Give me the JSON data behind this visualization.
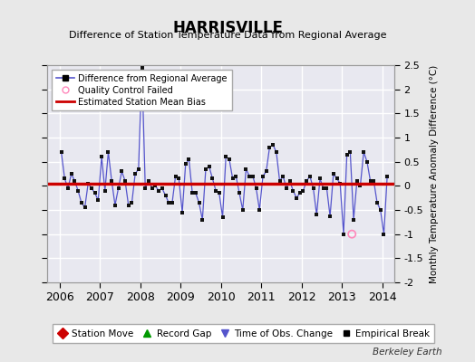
{
  "title": "HARRISVILLE",
  "subtitle": "Difference of Station Temperature Data from Regional Average",
  "ylabel": "Monthly Temperature Anomaly Difference (°C)",
  "credit": "Berkeley Earth",
  "xlim": [
    2005.7,
    2014.3
  ],
  "ylim": [
    -2.0,
    2.5
  ],
  "mean_bias": 0.05,
  "fig_facecolor": "#e8e8e8",
  "ax_facecolor": "#e8e8f0",
  "grid_color": "#ffffff",
  "line_color": "#5555cc",
  "marker_color": "#111111",
  "bias_color": "#cc0000",
  "qc_fail_x": 2013.25,
  "qc_fail_y": -1.0,
  "yticks": [
    -2.0,
    -1.5,
    -1.0,
    -0.5,
    0.0,
    0.5,
    1.0,
    1.5,
    2.0,
    2.5
  ],
  "xticks": [
    2006,
    2007,
    2008,
    2009,
    2010,
    2011,
    2012,
    2013,
    2014
  ],
  "data_x": [
    2006.042,
    2006.125,
    2006.208,
    2006.292,
    2006.375,
    2006.458,
    2006.542,
    2006.625,
    2006.708,
    2006.792,
    2006.875,
    2006.958,
    2007.042,
    2007.125,
    2007.208,
    2007.292,
    2007.375,
    2007.458,
    2007.542,
    2007.625,
    2007.708,
    2007.792,
    2007.875,
    2007.958,
    2008.042,
    2008.125,
    2008.208,
    2008.292,
    2008.375,
    2008.458,
    2008.542,
    2008.625,
    2008.708,
    2008.792,
    2008.875,
    2008.958,
    2009.042,
    2009.125,
    2009.208,
    2009.292,
    2009.375,
    2009.458,
    2009.542,
    2009.625,
    2009.708,
    2009.792,
    2009.875,
    2009.958,
    2010.042,
    2010.125,
    2010.208,
    2010.292,
    2010.375,
    2010.458,
    2010.542,
    2010.625,
    2010.708,
    2010.792,
    2010.875,
    2010.958,
    2011.042,
    2011.125,
    2011.208,
    2011.292,
    2011.375,
    2011.458,
    2011.542,
    2011.625,
    2011.708,
    2011.792,
    2011.875,
    2011.958,
    2012.042,
    2012.125,
    2012.208,
    2012.292,
    2012.375,
    2012.458,
    2012.542,
    2012.625,
    2012.708,
    2012.792,
    2012.875,
    2012.958,
    2013.042,
    2013.125,
    2013.208,
    2013.292,
    2013.375,
    2013.458,
    2013.542,
    2013.625,
    2013.708,
    2013.792,
    2013.875,
    2013.958,
    2014.042,
    2014.125
  ],
  "data_y": [
    0.7,
    0.15,
    -0.05,
    0.25,
    0.1,
    -0.1,
    -0.35,
    -0.45,
    0.05,
    -0.05,
    -0.15,
    -0.3,
    0.6,
    -0.1,
    0.7,
    0.1,
    -0.4,
    -0.05,
    0.3,
    0.1,
    -0.4,
    -0.35,
    0.25,
    0.35,
    2.45,
    -0.05,
    0.1,
    -0.05,
    0.0,
    -0.1,
    -0.05,
    -0.2,
    -0.35,
    -0.35,
    0.2,
    0.15,
    -0.55,
    0.45,
    0.55,
    -0.15,
    -0.15,
    -0.35,
    -0.7,
    0.35,
    0.4,
    0.15,
    -0.1,
    -0.15,
    -0.65,
    0.6,
    0.55,
    0.15,
    0.2,
    -0.15,
    -0.5,
    0.35,
    0.2,
    0.2,
    -0.05,
    -0.5,
    0.2,
    0.3,
    0.8,
    0.85,
    0.7,
    0.1,
    0.2,
    -0.05,
    0.1,
    -0.1,
    -0.25,
    -0.15,
    -0.1,
    0.1,
    0.2,
    -0.05,
    -0.6,
    0.15,
    -0.05,
    -0.05,
    -0.63,
    0.25,
    0.15,
    0.05,
    -1.0,
    0.65,
    0.7,
    -0.7,
    0.1,
    0.0,
    0.7,
    0.5,
    0.1,
    0.1,
    -0.35,
    -0.5,
    -1.0,
    0.2
  ]
}
